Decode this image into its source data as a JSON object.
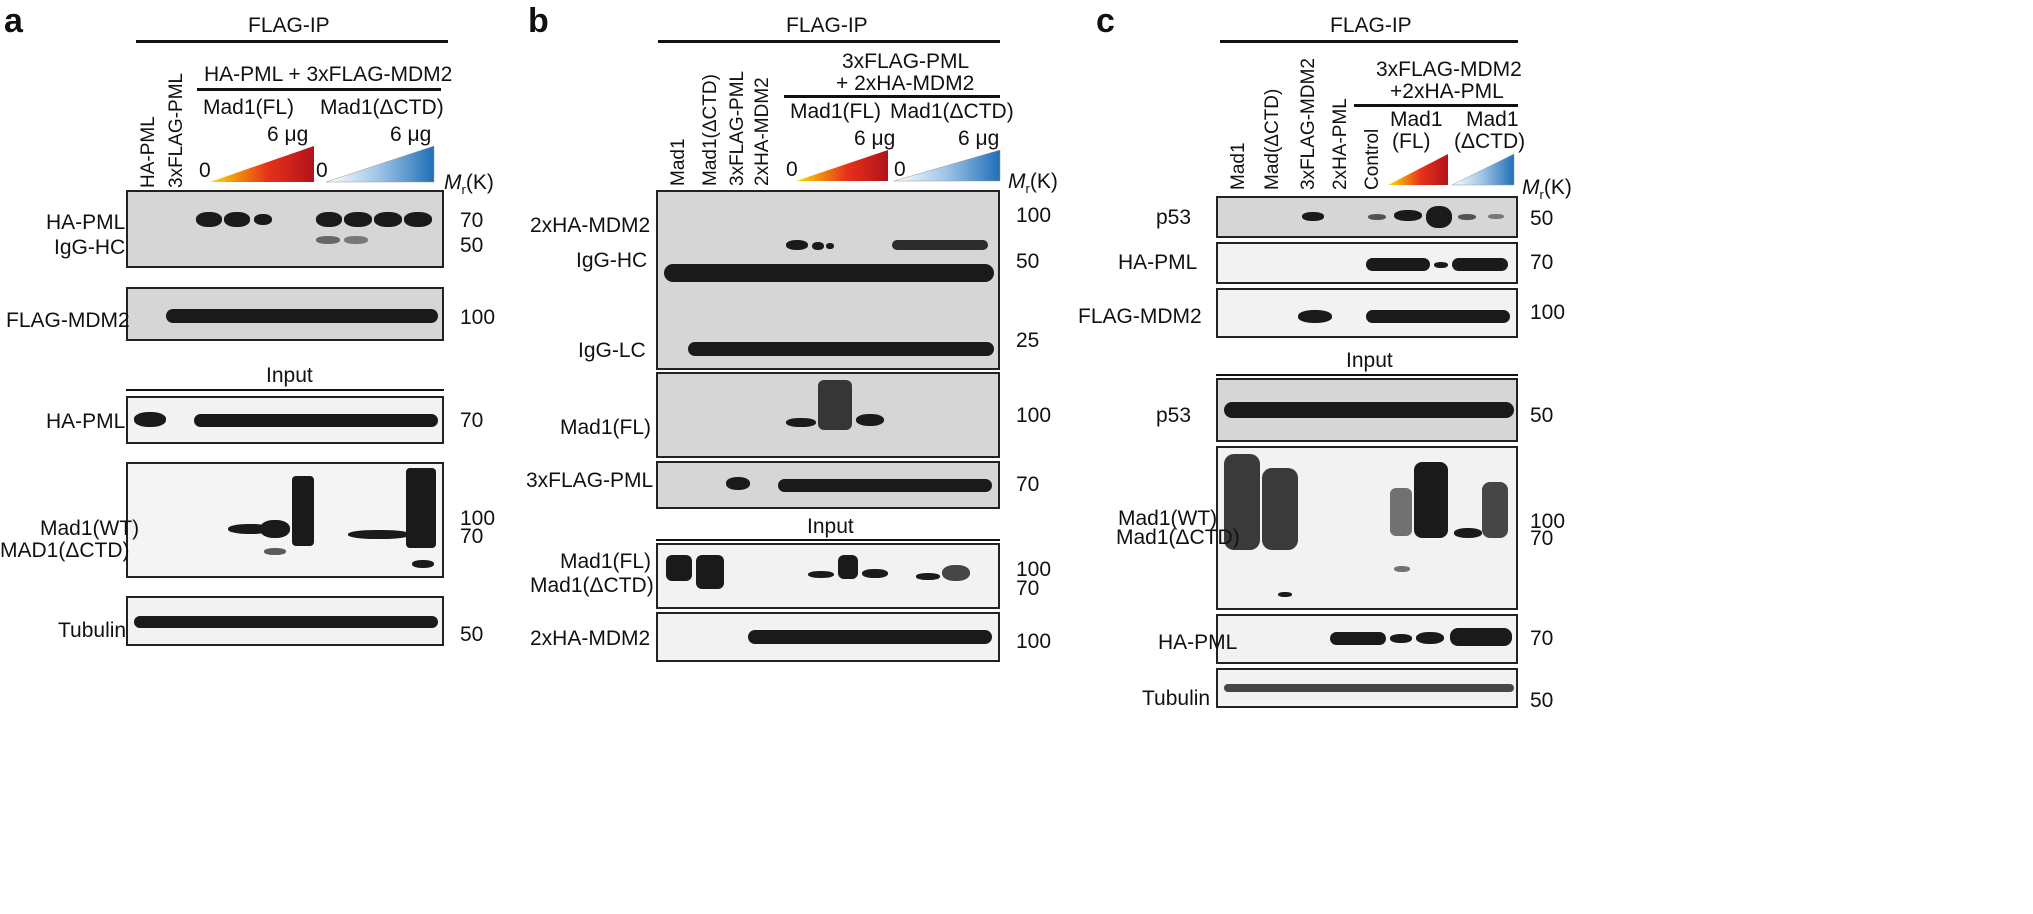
{
  "panels": {
    "a": {
      "letter": "a",
      "ip_header": "FLAG-IP",
      "group_header": "HA-PML + 3xFLAG-MDM2",
      "lanes": [
        "HA-PML",
        "3xFLAG-PML"
      ],
      "subgroups": [
        "Mad1(FL)",
        "Mad1(ΔCTD)"
      ],
      "dose_max": "6 μg",
      "dose_min": "0",
      "mr_prefix": "M",
      "mr_sub": "r",
      "mr_suffix": "(K)",
      "input_header": "Input",
      "rows": {
        "ha_pml": "HA-PML",
        "igg_hc": "IgG-HC",
        "flag_mdm2": "FLAG-MDM2",
        "input_ha_pml": "HA-PML",
        "mad1_wt": "Mad1(WT)",
        "mad1_dctd": "MAD1(ΔCTD)",
        "tubulin": "Tubulin"
      },
      "markers": {
        "m70": "70",
        "m50": "50",
        "m100": "100",
        "in70": "70",
        "mad100": "100",
        "mad70": "70",
        "tub50": "50"
      }
    },
    "b": {
      "letter": "b",
      "ip_header": "FLAG-IP",
      "group_header_line1": "3xFLAG-PML",
      "group_header_line2": "+ 2xHA-MDM2",
      "lanes": [
        "Mad1",
        "Mad1(ΔCTD)",
        "3xFLAG-PML",
        "2xHA-MDM2"
      ],
      "subgroups": [
        "Mad1(FL)",
        "Mad1(ΔCTD)"
      ],
      "dose_max": "6 μg",
      "dose_min": "0",
      "mr_prefix": "M",
      "mr_sub": "r",
      "mr_suffix": "(K)",
      "input_header": "Input",
      "rows": {
        "ha_mdm2": "2xHA-MDM2",
        "igg_hc": "IgG-HC",
        "igg_lc": "IgG-LC",
        "mad1_fl": "Mad1(FL)",
        "flag_pml": "3xFLAG-PML",
        "in_mad1_fl": "Mad1(FL)",
        "in_mad1_dctd": "Mad1(ΔCTD)",
        "in_ha_mdm2": "2xHA-MDM2"
      },
      "markers": {
        "m100": "100",
        "m50": "50",
        "m25": "25",
        "mad100": "100",
        "pml70": "70",
        "in100": "100",
        "in70": "70",
        "mdm100": "100"
      }
    },
    "c": {
      "letter": "c",
      "ip_header": "FLAG-IP",
      "group_header_line1": "3xFLAG-MDM2",
      "group_header_line2": "+2xHA-PML",
      "lanes": [
        "Mad1",
        "Mad(ΔCTD)",
        "3xFLAG-MDM2",
        "2xHA-PML",
        "Control"
      ],
      "subgroup_fl_line1": "Mad1",
      "subgroup_fl_line2": "(FL)",
      "subgroup_dctd_line1": "Mad1",
      "subgroup_dctd_line2": "(ΔCTD)",
      "mr_prefix": "M",
      "mr_sub": "r",
      "mr_suffix": "(K)",
      "input_header": "Input",
      "rows": {
        "p53": "p53",
        "ha_pml": "HA-PML",
        "flag_mdm2": "FLAG-MDM2",
        "in_p53": "p53",
        "mad1_wt": "Mad1(WT)",
        "mad1_dctd": "Mad1(ΔCTD)",
        "in_ha_pml": "HA-PML",
        "tubulin": "Tubulin"
      },
      "markers": {
        "p53_50": "50",
        "pml70": "70",
        "mdm100": "100",
        "in50": "50",
        "mad100": "100",
        "mad70": "70",
        "inpml70": "70",
        "tub50": "50"
      }
    }
  },
  "colors": {
    "fl_wedge": [
      "#f7e200",
      "#e8321a",
      "#b3121c"
    ],
    "dctd_wedge": [
      "#ffffff",
      "#9cc3e6",
      "#1f6fb7"
    ]
  }
}
